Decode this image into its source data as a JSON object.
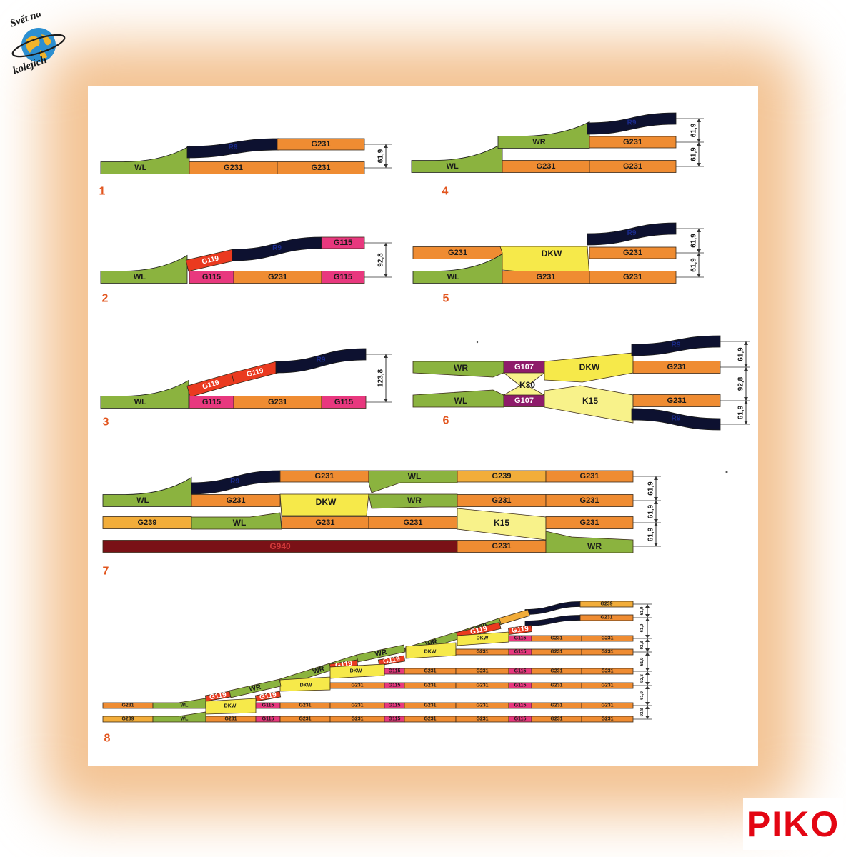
{
  "branding": {
    "site_logo_text": [
      "Svět na",
      "kolejích"
    ],
    "brand": "PIKO",
    "brand_color": "#e30613"
  },
  "colors": {
    "WL": "#8bb33f",
    "WR": "#8bb33f",
    "G231": "#ef8c32",
    "G239": "#f2ad3a",
    "G115": "#e8387e",
    "G119": "#ea3a1f",
    "G107": "#8e1b6a",
    "G940": "#7a1116",
    "DKW": "#f6e94a",
    "K30": "#f8f28a",
    "K15": "#f8f28a",
    "R9": "#0d1130",
    "dimension": "#333333",
    "figure_number": "#e2551e"
  },
  "diagrams": [
    {
      "number": "1",
      "labels": {
        "wl": "WL",
        "g231": "G231",
        "r9": "R9"
      },
      "dims": [
        "61,9"
      ]
    },
    {
      "number": "2",
      "labels": {
        "wl": "WL",
        "g115": "G115",
        "g119": "G119",
        "g231": "G231",
        "r9": "R9"
      },
      "dims": [
        "92,8"
      ]
    },
    {
      "number": "3",
      "labels": {
        "wl": "WL",
        "g115": "G115",
        "g119": "G119",
        "g231": "G231",
        "r9": "R9"
      },
      "dims": [
        "123,8"
      ]
    },
    {
      "number": "4",
      "labels": {
        "wl": "WL",
        "wr": "WR",
        "g231": "G231",
        "r9": "R9"
      },
      "dims": [
        "61,9",
        "61,9"
      ]
    },
    {
      "number": "5",
      "labels": {
        "wl": "WL",
        "dkw": "DKW",
        "g231": "G231",
        "r9": "R9"
      },
      "dims": [
        "61,9",
        "61,9"
      ]
    },
    {
      "number": "6",
      "labels": {
        "wl": "WL",
        "wr": "WR",
        "g107": "G107",
        "k30": "K30",
        "dkw": "DKW",
        "k15": "K15",
        "g231": "G231",
        "r9": "R9"
      },
      "dims": [
        "61,9",
        "92,8",
        "61,9"
      ]
    },
    {
      "number": "7",
      "labels": {
        "wl": "WL",
        "wr": "WR",
        "g231": "G231",
        "g239": "G239",
        "dkw": "DKW",
        "k15": "K15",
        "g940": "G940",
        "r9": "R9"
      },
      "dims": [
        "61,9",
        "61,9",
        "61,9"
      ]
    },
    {
      "number": "8",
      "labels": {
        "wl": "WL",
        "wr": "WR",
        "g231": "G231",
        "g239": "G239",
        "g115": "G115",
        "g119": "G119",
        "dkw": "DKW"
      },
      "dims": [
        "61,9",
        "61,9",
        "92,8",
        "61,9",
        "92,8",
        "61,9",
        "92,8",
        "61,9"
      ]
    }
  ]
}
